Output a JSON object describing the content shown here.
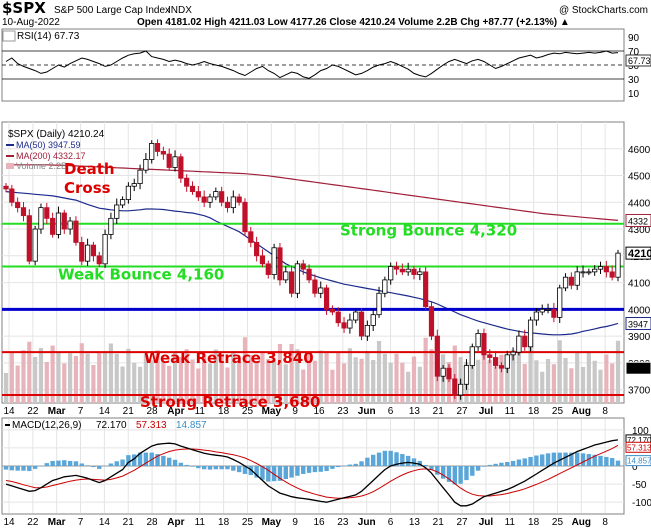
{
  "header": {
    "symbol": "$SPX",
    "name": "S&P 500 Large Cap Index",
    "exchange": "INDX",
    "copyright": "@ StockCharts.com",
    "date": "10-Aug-2022",
    "quote": "Open 4181.02  High 4211.03  Low 4177.26  Close 4210.24  Volume 2.2B  Chg +87.77 (+2.13%) ▲"
  },
  "chart_data": [
    {
      "type": "line",
      "panel": "RSI",
      "legend": "RSI(14) 67.73",
      "last_value_label": "67.73",
      "y_ticks": [
        90,
        70,
        50,
        30,
        10
      ],
      "ylim": [
        0,
        100
      ],
      "reference_lines": [
        70,
        50,
        30
      ],
      "values": [
        55,
        60,
        52,
        48,
        45,
        42,
        38,
        40,
        45,
        50,
        47,
        52,
        56,
        60,
        58,
        55,
        52,
        48,
        50,
        55,
        60,
        64,
        66,
        67,
        70,
        62,
        60,
        58,
        55,
        57,
        55,
        52,
        50,
        52,
        55,
        52,
        50,
        48,
        45,
        42,
        38,
        35,
        40,
        45,
        48,
        42,
        38,
        32,
        36,
        40,
        38,
        33,
        31,
        36,
        42,
        45,
        50,
        48,
        44,
        40,
        36,
        38,
        42,
        47,
        50,
        52,
        55,
        52,
        48,
        44,
        38,
        35,
        33,
        38,
        44,
        50,
        55,
        58,
        55,
        52,
        56,
        58,
        55,
        50,
        45,
        48,
        52,
        56,
        60,
        62,
        64,
        60,
        62,
        65,
        67,
        66,
        68,
        67,
        66,
        67,
        68,
        67,
        68,
        70,
        67,
        67.73
      ]
    },
    {
      "type": "candlestick",
      "panel": "Price",
      "legend": {
        "title": "$SPX (Daily) 4210.24",
        "ma50": "MA(50) 3947.59",
        "ma200": "MA(200) 4332.17",
        "volume": "Volume 2.2B"
      },
      "last_price_label": "4210",
      "ylim": [
        3650,
        4700
      ],
      "y_ticks": [
        4600,
        4500,
        4400,
        4300,
        4200,
        4100,
        4000,
        3900,
        3800,
        3700
      ],
      "y_tick_labels": [
        "4600",
        "4500",
        "4400",
        "4300",
        "4200",
        "4100",
        "4000",
        "3900",
        "3800",
        "3700"
      ],
      "right_axis_markers": [
        "4210",
        "4332",
        "3947",
        "2215"
      ],
      "annotations": [
        "Death",
        "Cross"
      ],
      "horizontal_levels": [
        {
          "label": "Strong Bounce 4,320",
          "value": 4320,
          "color": "#22dd22"
        },
        {
          "label": "Weak Bounce 4,160",
          "value": 4160,
          "color": "#22dd22"
        },
        {
          "label": "",
          "value": 4000,
          "color": "#0000cc"
        },
        {
          "label": "Weak Retrace 3,840",
          "value": 3840,
          "color": "#dd0000"
        },
        {
          "label": "Strong Retrace 3,680",
          "value": 3680,
          "color": "#dd0000"
        }
      ],
      "x_labels": [
        "14",
        "22",
        "Mar",
        "7",
        "14",
        "21",
        "28",
        "Apr",
        "11",
        "18",
        "25",
        "May",
        "9",
        "16",
        "23",
        "Jun",
        "6",
        "13",
        "21",
        "27",
        "Jul",
        "11",
        "18",
        "25",
        "Aug",
        "8"
      ],
      "close": [
        4450,
        4400,
        4380,
        4350,
        4180,
        4300,
        4380,
        4340,
        4280,
        4360,
        4300,
        4330,
        4250,
        4180,
        4240,
        4200,
        4170,
        4280,
        4340,
        4390,
        4410,
        4460,
        4470,
        4520,
        4560,
        4620,
        4590,
        4580,
        4530,
        4570,
        4490,
        4460,
        4440,
        4420,
        4400,
        4420,
        4440,
        4400,
        4380,
        4420,
        4400,
        4290,
        4250,
        4200,
        4170,
        4130,
        4230,
        4110,
        4140,
        4060,
        4170,
        4150,
        4110,
        4060,
        4080,
        4000,
        3990,
        3950,
        3930,
        3960,
        3990,
        3900,
        3940,
        3980,
        4060,
        4110,
        4160,
        4150,
        4140,
        4150,
        4130,
        4140,
        4010,
        3900,
        3750,
        3780,
        3740,
        3680,
        3720,
        3790,
        3860,
        3910,
        3830,
        3820,
        3790,
        3780,
        3830,
        3840,
        3900,
        3860,
        3960,
        3990,
        4000,
        4000,
        3970,
        4080,
        4120,
        4090,
        4140,
        4140,
        4140,
        4150,
        4160,
        4140,
        4120,
        4210
      ],
      "ma50": [
        4440,
        4438,
        4436,
        4434,
        4432,
        4430,
        4428,
        4426,
        4424,
        4420,
        4416,
        4412,
        4408,
        4400,
        4392,
        4385,
        4378,
        4375,
        4372,
        4370,
        4368,
        4368,
        4370,
        4372,
        4375,
        4375,
        4374,
        4373,
        4370,
        4367,
        4365,
        4362,
        4360,
        4355,
        4350,
        4342,
        4330,
        4320,
        4310,
        4300,
        4290,
        4275,
        4260,
        4245,
        4230,
        4215,
        4200,
        4185,
        4170,
        4160,
        4150,
        4140,
        4132,
        4125,
        4118,
        4112,
        4106,
        4100,
        4094,
        4090,
        4086,
        4082,
        4078,
        4074,
        4070,
        4066,
        4062,
        4058,
        4054,
        4050,
        4045,
        4040,
        4034,
        4028,
        4020,
        4010,
        4000,
        3990,
        3980,
        3972,
        3964,
        3956,
        3950,
        3944,
        3938,
        3932,
        3926,
        3922,
        3918,
        3914,
        3912,
        3910,
        3908,
        3906,
        3905,
        3905,
        3906,
        3908,
        3912,
        3918,
        3922,
        3927,
        3932,
        3936,
        3941,
        3947.59
      ],
      "ma200": [
        4540,
        4540,
        4540,
        4540,
        4540,
        4540,
        4540,
        4540,
        4539,
        4539,
        4538,
        4537,
        4536,
        4535,
        4534,
        4533,
        4532,
        4531,
        4530,
        4529,
        4528,
        4527,
        4526,
        4525,
        4524,
        4523,
        4522,
        4521,
        4520,
        4519,
        4518,
        4517,
        4516,
        4515,
        4514,
        4513,
        4512,
        4511,
        4510,
        4509,
        4508,
        4507,
        4505,
        4503,
        4501,
        4499,
        4496,
        4493,
        4490,
        4487,
        4484,
        4481,
        4478,
        4475,
        4472,
        4469,
        4466,
        4463,
        4460,
        4457,
        4454,
        4451,
        4448,
        4445,
        4442,
        4439,
        4436,
        4433,
        4430,
        4427,
        4424,
        4421,
        4418,
        4415,
        4412,
        4409,
        4406,
        4403,
        4400,
        4397,
        4394,
        4391,
        4388,
        4385,
        4382,
        4379,
        4376,
        4373,
        4370,
        4367,
        4364,
        4361,
        4358,
        4356,
        4354,
        4352,
        4350,
        4348,
        4346,
        4344,
        4342,
        4340,
        4338,
        4336,
        4334,
        4332.17
      ]
    },
    {
      "type": "line",
      "panel": "MACD",
      "legend": {
        "title": "MACD(12,26,9)",
        "macd": "72.170",
        "signal": "57.313",
        "hist": "14.857"
      },
      "right_axis_markers": [
        "72.170",
        "57.313",
        "14.857"
      ],
      "y_ticks": [
        100,
        50,
        0,
        -50,
        -100
      ],
      "ylim": [
        -130,
        130
      ],
      "x_labels": [
        "14",
        "22",
        "Mar",
        "7",
        "14",
        "21",
        "28",
        "Apr",
        "11",
        "18",
        "25",
        "May",
        "9",
        "16",
        "23",
        "Jun",
        "6",
        "13",
        "21",
        "27",
        "Jul",
        "11",
        "18",
        "25",
        "Aug",
        "8"
      ],
      "macd": [
        -50,
        -55,
        -60,
        -65,
        -70,
        -68,
        -60,
        -50,
        -40,
        -35,
        -30,
        -28,
        -26,
        -30,
        -34,
        -40,
        -46,
        -40,
        -30,
        -20,
        -10,
        10,
        20,
        35,
        45,
        55,
        60,
        62,
        63,
        61,
        55,
        50,
        45,
        40,
        35,
        32,
        30,
        28,
        25,
        18,
        10,
        0,
        -10,
        -25,
        -40,
        -55,
        -65,
        -75,
        -80,
        -85,
        -88,
        -90,
        -92,
        -95,
        -98,
        -100,
        -96,
        -92,
        -88,
        -84,
        -80,
        -70,
        -55,
        -40,
        -25,
        -10,
        0,
        5,
        8,
        10,
        8,
        5,
        -5,
        -20,
        -40,
        -60,
        -80,
        -100,
        -110,
        -110,
        -105,
        -95,
        -85,
        -80,
        -75,
        -70,
        -65,
        -58,
        -50,
        -42,
        -32,
        -22,
        -12,
        -2,
        8,
        16,
        24,
        32,
        40,
        46,
        52,
        58,
        62,
        66,
        70,
        72.17
      ],
      "signal": [
        -40,
        -43,
        -47,
        -52,
        -56,
        -60,
        -60,
        -58,
        -54,
        -50,
        -46,
        -42,
        -39,
        -37,
        -36,
        -37,
        -38,
        -39,
        -37,
        -33,
        -28,
        -20,
        -12,
        -2,
        8,
        18,
        27,
        34,
        40,
        44,
        46,
        47,
        47,
        46,
        44,
        42,
        39,
        37,
        34,
        31,
        27,
        22,
        15,
        7,
        -2,
        -12,
        -23,
        -34,
        -44,
        -53,
        -61,
        -68,
        -73,
        -78,
        -82,
        -86,
        -88,
        -89,
        -89,
        -88,
        -86,
        -83,
        -78,
        -71,
        -62,
        -52,
        -42,
        -33,
        -25,
        -18,
        -13,
        -9,
        -8,
        -10,
        -16,
        -25,
        -36,
        -49,
        -61,
        -71,
        -78,
        -82,
        -83,
        -83,
        -81,
        -79,
        -76,
        -72,
        -68,
        -63,
        -57,
        -51,
        -44,
        -37,
        -29,
        -21,
        -13,
        -5,
        3,
        11,
        19,
        27,
        34,
        41,
        48,
        57.313
      ]
    }
  ]
}
